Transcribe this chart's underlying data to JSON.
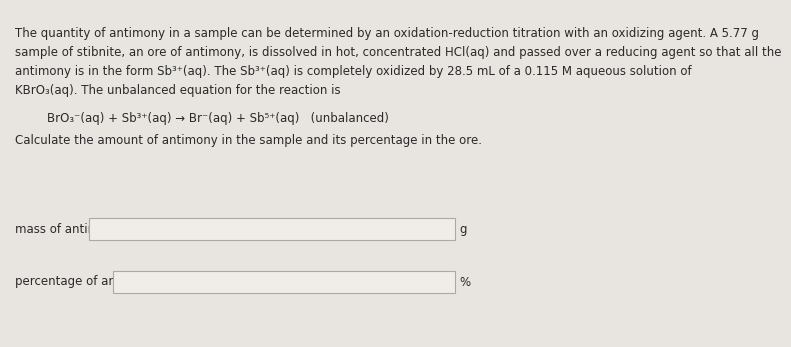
{
  "background_color": "#e8e5e0",
  "text_color": "#2a2a2a",
  "line1": "The quantity of antimony in a sample can be determined by an oxidation-reduction titration with an oxidizing agent. A 5.77 g",
  "line2": "sample of stibnite, an ore of antimony, is dissolved in hot, concentrated HCl(aq) and passed over a reducing agent so that all the",
  "line3": "antimony is in the form Sb³⁺(aq). The Sb³⁺(aq) is completely oxidized by 28.5 mL of a 0.115 M aqueous solution of",
  "line4": "KBrO₃(aq). The unbalanced equation for the reaction is",
  "equation": "BrO₃⁻(aq) + Sb³⁺(aq) → Br⁻(aq) + Sb⁵⁺(aq)   (unbalanced)",
  "instruction": "Calculate the amount of antimony in the sample and its percentage in the ore.",
  "label1": "mass of antimony:",
  "label2": "percentage of antimony:",
  "unit1": "g",
  "unit2": "%",
  "box_facecolor": "#f0ede8",
  "box_edgecolor": "#aaa9a5",
  "font_size": 8.5
}
